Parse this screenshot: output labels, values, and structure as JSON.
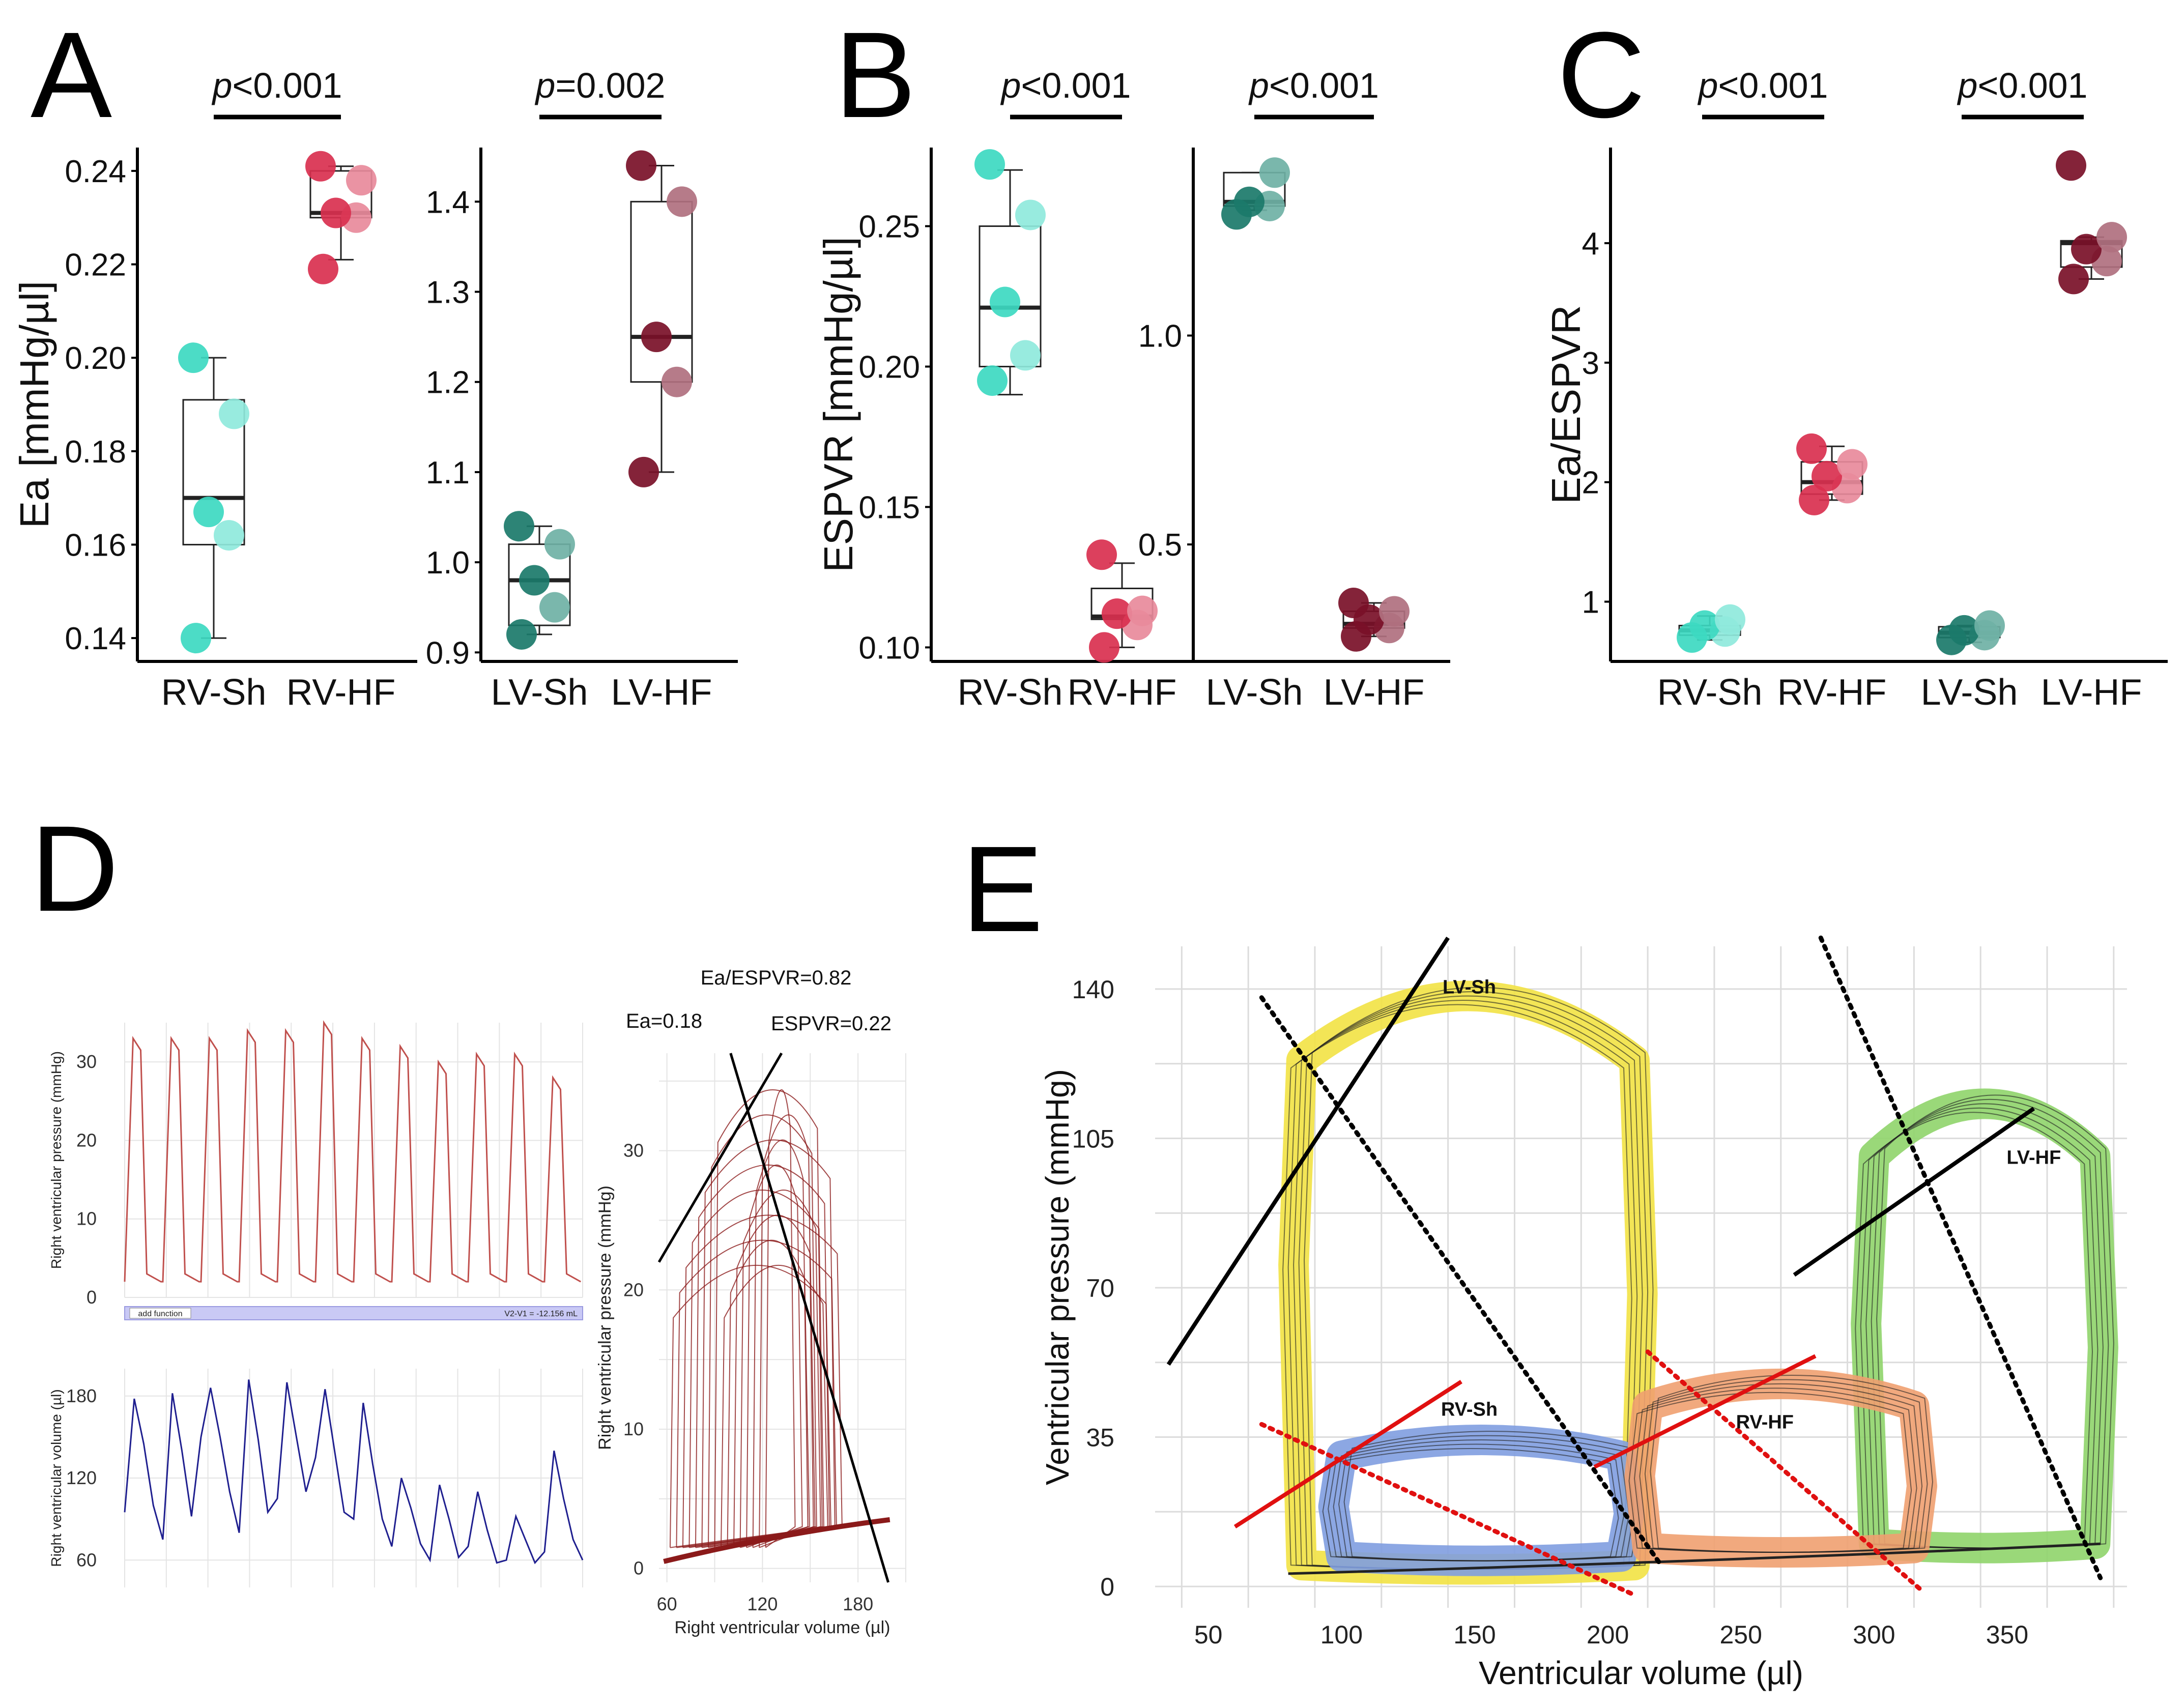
{
  "figure": {
    "letters": {
      "A": "A",
      "B": "B",
      "C": "C",
      "D": "D",
      "E": "E"
    }
  },
  "colors": {
    "rv_sh": "#3dd9c1",
    "rv_sh_light": "#8fe9dc",
    "rv_hf": "#d9304f",
    "rv_hf_light": "#e88a9b",
    "lv_sh": "#1b7a6a",
    "lv_sh_light": "#6fb1a5",
    "lv_hf": "#7a1028",
    "lv_hf_light": "#b0707f",
    "pressure_trace": "#c0504d",
    "volume_trace": "#1f1f8f",
    "loop_trace": "#8b1a1a",
    "lv_sh_fill": "#f2e244",
    "lv_hf_fill": "#8fd46a",
    "rv_sh_fill": "#7f9de0",
    "rv_hf_fill": "#f0a070",
    "red_line": "#e01010"
  },
  "chart_data": [
    {
      "id": "A-left",
      "type": "box-strip",
      "ylabel": "Ea [mmHg/µl]",
      "ylim": [
        0.135,
        0.245
      ],
      "yticks": [
        0.14,
        0.16,
        0.18,
        0.2,
        0.22,
        0.24
      ],
      "ytick_labels": [
        "0.14",
        "0.16",
        "0.18",
        "0.20",
        "0.22",
        "0.24"
      ],
      "categories": [
        "RV-Sh",
        "RV-HF"
      ],
      "pvalue": {
        "prefix": "p",
        "text": "<0.001"
      },
      "groups": [
        {
          "name": "RV-Sh",
          "color": "rv_sh",
          "points": [
            0.14,
            0.162,
            0.167,
            0.188,
            0.2
          ],
          "box": {
            "min": 0.14,
            "q1": 0.16,
            "median": 0.17,
            "q3": 0.191,
            "max": 0.2
          }
        },
        {
          "name": "RV-HF",
          "color": "rv_hf",
          "points": [
            0.219,
            0.23,
            0.231,
            0.238,
            0.241
          ],
          "box": {
            "min": 0.221,
            "q1": 0.23,
            "median": 0.231,
            "q3": 0.24,
            "max": 0.241
          }
        }
      ]
    },
    {
      "id": "A-right",
      "type": "box-strip",
      "ylabel": "",
      "ylim": [
        0.89,
        1.46
      ],
      "yticks": [
        0.9,
        1.0,
        1.1,
        1.2,
        1.3,
        1.4
      ],
      "ytick_labels": [
        "0.9",
        "1.0",
        "1.1",
        "1.2",
        "1.3",
        "1.4"
      ],
      "categories": [
        "LV-Sh",
        "LV-HF"
      ],
      "pvalue": {
        "prefix": "p",
        "text": "=0.002"
      },
      "groups": [
        {
          "name": "LV-Sh",
          "color": "lv_sh",
          "points": [
            0.92,
            0.95,
            0.98,
            1.02,
            1.04
          ],
          "box": {
            "min": 0.92,
            "q1": 0.93,
            "median": 0.98,
            "q3": 1.02,
            "max": 1.04
          }
        },
        {
          "name": "LV-HF",
          "color": "lv_hf",
          "points": [
            1.1,
            1.2,
            1.25,
            1.4,
            1.44
          ],
          "box": {
            "min": 1.1,
            "q1": 1.2,
            "median": 1.25,
            "q3": 1.4,
            "max": 1.44
          }
        }
      ]
    },
    {
      "id": "B-left",
      "type": "box-strip",
      "ylabel": "ESPVR [mmHg/µl]",
      "ylim": [
        0.095,
        0.278
      ],
      "yticks": [
        0.1,
        0.15,
        0.2,
        0.25
      ],
      "ytick_labels": [
        "0.10",
        "0.15",
        "0.20",
        "0.25"
      ],
      "categories": [
        "RV-Sh",
        "RV-HF"
      ],
      "pvalue": {
        "prefix": "p",
        "text": "<0.001"
      },
      "groups": [
        {
          "name": "RV-Sh",
          "color": "rv_sh",
          "points": [
            0.195,
            0.204,
            0.223,
            0.254,
            0.272
          ],
          "box": {
            "min": 0.19,
            "q1": 0.2,
            "median": 0.221,
            "q3": 0.25,
            "max": 0.27
          }
        },
        {
          "name": "RV-HF",
          "color": "rv_hf",
          "points": [
            0.1,
            0.108,
            0.112,
            0.113,
            0.133
          ],
          "box": {
            "min": 0.1,
            "q1": 0.11,
            "median": 0.111,
            "q3": 0.121,
            "max": 0.13
          }
        }
      ]
    },
    {
      "id": "B-right",
      "type": "box-strip",
      "ylabel": "",
      "ylim": [
        0.22,
        1.45
      ],
      "yticks": [
        0.5,
        1.0
      ],
      "ytick_labels": [
        "0.5",
        "1.0"
      ],
      "categories": [
        "LV-Sh",
        "LV-HF"
      ],
      "pvalue": {
        "prefix": "p",
        "text": "<0.001"
      },
      "groups": [
        {
          "name": "LV-Sh",
          "color": "lv_sh",
          "points": [
            1.29,
            1.31,
            1.32,
            1.39
          ],
          "box": {
            "min": 1.3,
            "q1": 1.31,
            "median": 1.32,
            "q3": 1.39,
            "max": 1.39
          }
        },
        {
          "name": "LV-HF",
          "color": "lv_hf",
          "points": [
            0.28,
            0.3,
            0.32,
            0.34,
            0.36
          ],
          "box": {
            "min": 0.28,
            "q1": 0.3,
            "median": 0.31,
            "q3": 0.34,
            "max": 0.36
          }
        }
      ]
    },
    {
      "id": "C",
      "type": "box-strip",
      "ylabel": "Ea/ESPVR",
      "ylim": [
        0.5,
        4.8
      ],
      "yticks": [
        1,
        2,
        3,
        4
      ],
      "ytick_labels": [
        "1",
        "2",
        "3",
        "4"
      ],
      "categories": [
        "RV-Sh",
        "RV-HF",
        "LV-Sh",
        "LV-HF"
      ],
      "pvalues": [
        {
          "prefix": "p",
          "text": "<0.001"
        },
        {
          "prefix": "p",
          "text": "<0.001"
        }
      ],
      "groups": [
        {
          "name": "RV-Sh",
          "color": "rv_sh",
          "points": [
            0.7,
            0.75,
            0.8,
            0.85
          ],
          "box": {
            "min": 0.68,
            "q1": 0.72,
            "median": 0.76,
            "q3": 0.8,
            "max": 0.88
          }
        },
        {
          "name": "RV-HF",
          "color": "rv_hf",
          "points": [
            1.85,
            1.95,
            2.05,
            2.15,
            2.28
          ],
          "box": {
            "min": 1.85,
            "q1": 1.9,
            "median": 2.0,
            "q3": 2.17,
            "max": 2.3
          }
        },
        {
          "name": "LV-Sh",
          "color": "lv_sh",
          "points": [
            0.68,
            0.72,
            0.76,
            0.8
          ],
          "box": {
            "min": 0.66,
            "q1": 0.7,
            "median": 0.74,
            "q3": 0.79,
            "max": 0.8
          }
        },
        {
          "name": "LV-HF",
          "color": "lv_hf",
          "points": [
            3.7,
            3.85,
            3.95,
            4.05,
            4.65
          ],
          "box": {
            "min": 3.7,
            "q1": 3.8,
            "median": 4.0,
            "q3": 4.02,
            "max": 4.05
          }
        }
      ]
    },
    {
      "id": "D-pressure",
      "type": "line",
      "ylabel": "Right ventricular pressure (mmHg)",
      "ylim": [
        0,
        35
      ],
      "yticks": [
        0,
        10,
        20,
        30
      ],
      "ytick_labels": [
        "0",
        "10",
        "20",
        "30"
      ],
      "beats": 12,
      "peak_values": [
        33,
        33,
        33,
        34,
        34,
        35,
        33,
        32,
        30,
        31,
        31,
        28
      ],
      "trough_value": 2
    },
    {
      "id": "D-volume",
      "type": "line",
      "ylabel": "Right ventricular volume (µl)",
      "ylim": [
        40,
        200
      ],
      "yticks": [
        60,
        120,
        180
      ],
      "ytick_labels": [
        "60",
        "120",
        "180"
      ],
      "samples": [
        95,
        178,
        145,
        100,
        75,
        182,
        140,
        92,
        150,
        186,
        150,
        110,
        80,
        192,
        148,
        95,
        105,
        190,
        150,
        110,
        135,
        185,
        140,
        95,
        90,
        175,
        130,
        90,
        70,
        120,
        98,
        72,
        60,
        115,
        90,
        62,
        70,
        110,
        82,
        58,
        60,
        92,
        75,
        58,
        66,
        140,
        105,
        75,
        60
      ],
      "band_label": "add function",
      "band_value": "V2-V1 = -12.156 mL"
    },
    {
      "id": "D-loops",
      "type": "pv-loop",
      "xlabel": "Right ventricular volume (µl)",
      "ylabel": "Right ventricular pressure (mmHg)",
      "xlim": [
        55,
        210
      ],
      "ylim": [
        -1,
        37
      ],
      "xticks": [
        60,
        120,
        180
      ],
      "xtick_labels": [
        "60",
        "120",
        "180"
      ],
      "yticks": [
        0,
        10,
        20,
        30
      ],
      "ytick_labels": [
        "0",
        "10",
        "20",
        "30"
      ],
      "annotations": {
        "ratio": "Ea/ESPVR=0.82",
        "ea": "Ea=0.18",
        "espvr": "ESPVR=0.22"
      },
      "espvr_line": {
        "x": [
          55,
          132
        ],
        "y": [
          22,
          37
        ]
      },
      "ea_line": {
        "x": [
          100,
          199
        ],
        "y": [
          37,
          -1
        ]
      },
      "loop_count": 16
    },
    {
      "id": "E",
      "type": "pv-loop",
      "xlabel": "Ventricular volume (µl)",
      "ylabel": "Ventricular pressure (mmHg)",
      "xlim": [
        30,
        395
      ],
      "ylim": [
        -5,
        150
      ],
      "xticks": [
        50,
        100,
        150,
        200,
        250,
        300,
        350
      ],
      "xtick_labels": [
        "50",
        "100",
        "150",
        "200",
        "250",
        "300",
        "350"
      ],
      "yticks": [
        0,
        35,
        70,
        105,
        140
      ],
      "ytick_labels": [
        "0",
        "35",
        "70",
        "105",
        "140"
      ],
      "loops": [
        {
          "name": "LV-Sh",
          "color": "lv_sh_fill",
          "ved": 210,
          "ves": 85,
          "pmax": 137,
          "pmin": 5
        },
        {
          "name": "LV-HF",
          "color": "lv_hf_fill",
          "ved": 383,
          "ves": 300,
          "pmax": 112,
          "pmin": 10
        },
        {
          "name": "RV-Sh",
          "color": "rv_sh_fill",
          "ved": 205,
          "ves": 100,
          "pmax": 34,
          "pmin": 7
        },
        {
          "name": "RV-HF",
          "color": "rv_hf_fill",
          "ved": 315,
          "ves": 215,
          "pmax": 47,
          "pmin": 9
        }
      ],
      "espvr_lines": [
        {
          "name": "LV-Sh",
          "color": "#000000",
          "x": [
            35,
            140
          ],
          "y": [
            52,
            152
          ]
        },
        {
          "name": "LV-HF",
          "color": "#000000",
          "x": [
            270,
            360
          ],
          "y": [
            73,
            112
          ]
        },
        {
          "name": "RV-Sh",
          "color": "red_line",
          "x": [
            60,
            145
          ],
          "y": [
            14,
            48
          ]
        },
        {
          "name": "RV-HF",
          "color": "red_line",
          "x": [
            195,
            278
          ],
          "y": [
            28,
            54
          ]
        }
      ],
      "ea_lines": [
        {
          "name": "LV-Sh",
          "color": "#000000",
          "x": [
            70,
            220
          ],
          "y": [
            138,
            5
          ]
        },
        {
          "name": "LV-HF",
          "color": "#000000",
          "x": [
            280,
            385
          ],
          "y": [
            152,
            2
          ]
        },
        {
          "name": "RV-Sh",
          "color": "red_line",
          "x": [
            70,
            210
          ],
          "y": [
            38,
            -2
          ]
        },
        {
          "name": "RV-HF",
          "color": "red_line",
          "x": [
            215,
            318
          ],
          "y": [
            55,
            -1
          ]
        }
      ]
    }
  ]
}
